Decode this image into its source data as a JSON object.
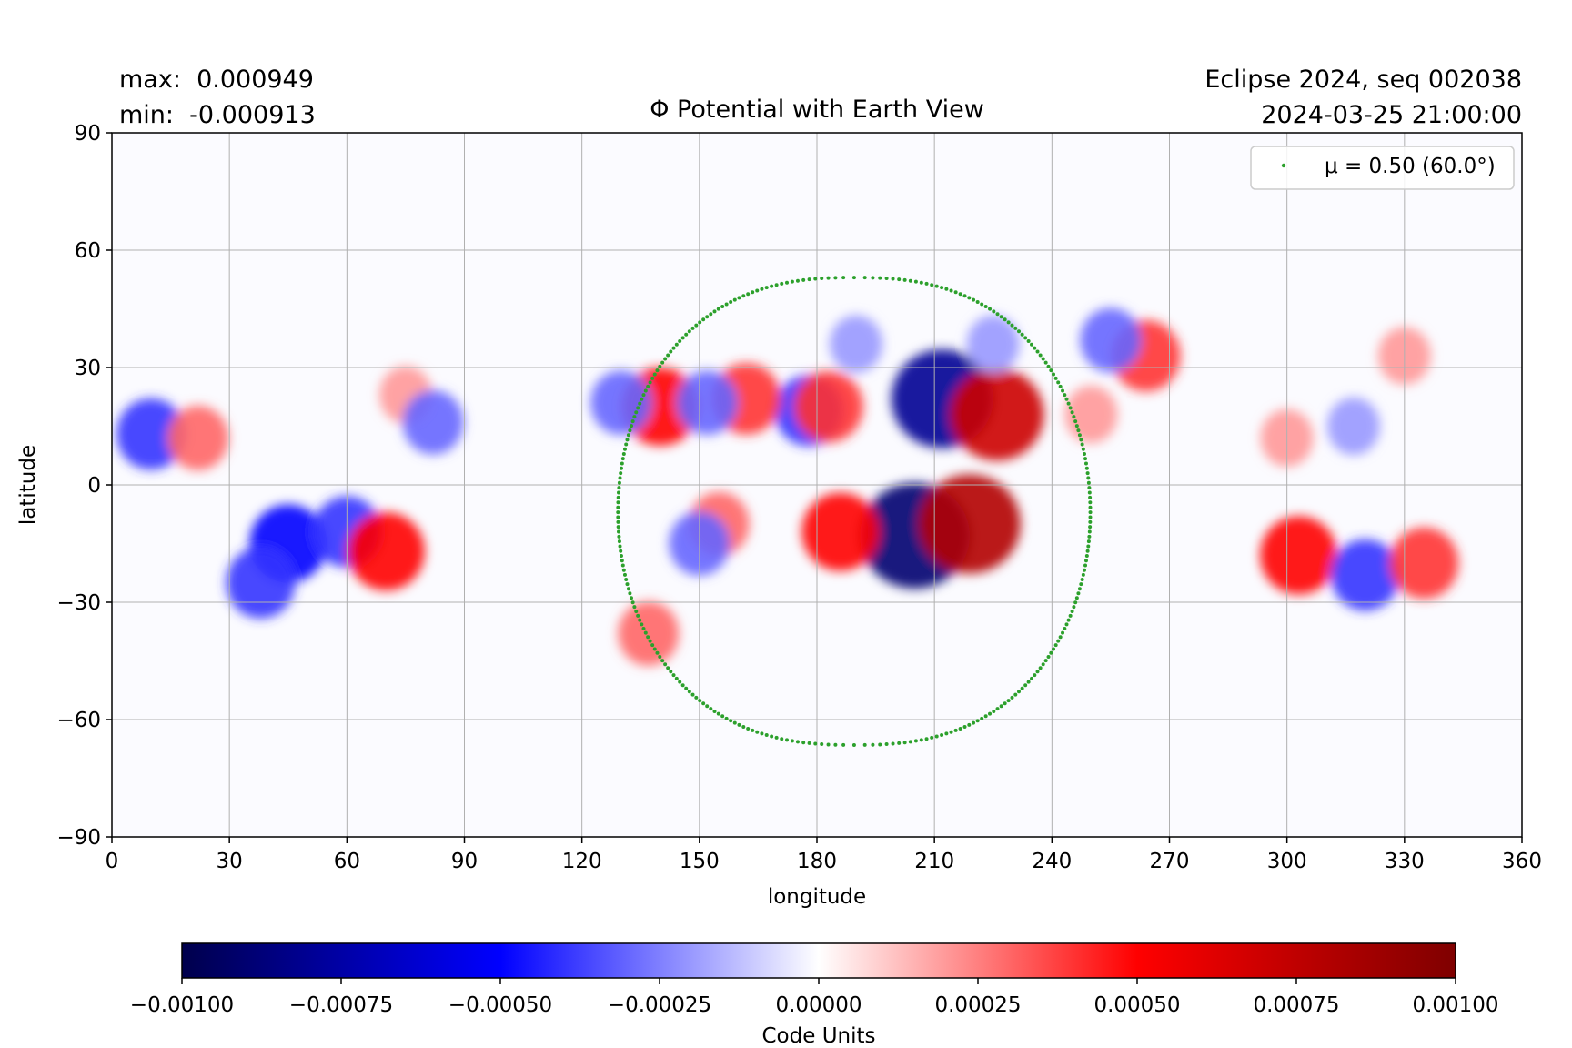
{
  "header": {
    "max_label": "max:  0.000949",
    "min_label": "min:  -0.000913",
    "run_label": "Eclipse 2024, seq 002038",
    "datetime_label": "2024-03-25 21:00:00"
  },
  "chart_data": {
    "type": "heatmap",
    "title": "Φ Potential with Earth View",
    "xlabel": "longitude",
    "ylabel": "latitude",
    "xlim": [
      0,
      360
    ],
    "ylim": [
      -90,
      90
    ],
    "x_ticks": [
      0,
      30,
      60,
      90,
      120,
      150,
      180,
      210,
      240,
      270,
      300,
      330,
      360
    ],
    "y_ticks": [
      90,
      60,
      30,
      0,
      -30,
      -60,
      -90
    ],
    "y_tick_labels": [
      "90",
      "60",
      "30",
      "0",
      "−30",
      "−60",
      "−90"
    ],
    "grid": true,
    "colormap": "seismic",
    "colormap_colors": [
      "#00004c",
      "#0000ff",
      "#ffffff",
      "#ff0000",
      "#7f0000"
    ],
    "value_max": 0.000949,
    "value_min": -0.000913,
    "features": [
      {
        "lon": 212,
        "lat": 22,
        "value": -0.0008
      },
      {
        "lon": 226,
        "lat": 18,
        "value": 0.0007
      },
      {
        "lon": 205,
        "lat": -13,
        "value": -0.0009
      },
      {
        "lon": 219,
        "lat": -10,
        "value": 0.0008
      },
      {
        "lon": 186,
        "lat": -12,
        "value": 0.0005
      },
      {
        "lon": 140,
        "lat": 20,
        "value": 0.0005
      },
      {
        "lon": 178,
        "lat": 19,
        "value": -0.0004
      },
      {
        "lon": 183,
        "lat": 20,
        "value": 0.0004
      },
      {
        "lon": 162,
        "lat": 22,
        "value": 0.0004
      },
      {
        "lon": 152,
        "lat": 21,
        "value": -0.0003
      },
      {
        "lon": 10,
        "lat": 13,
        "value": -0.0004
      },
      {
        "lon": 22,
        "lat": 12,
        "value": 0.0003
      },
      {
        "lon": 45,
        "lat": -15,
        "value": -0.0005
      },
      {
        "lon": 38,
        "lat": -25,
        "value": -0.0004
      },
      {
        "lon": 60,
        "lat": -12,
        "value": -0.0004
      },
      {
        "lon": 70,
        "lat": -17,
        "value": 0.0005
      },
      {
        "lon": 303,
        "lat": -18,
        "value": 0.0005
      },
      {
        "lon": 320,
        "lat": -23,
        "value": -0.0004
      },
      {
        "lon": 335,
        "lat": -20,
        "value": 0.0004
      },
      {
        "lon": 264,
        "lat": 33,
        "value": 0.0004
      },
      {
        "lon": 255,
        "lat": 37,
        "value": -0.0003
      },
      {
        "lon": 130,
        "lat": 21,
        "value": -0.0003
      },
      {
        "lon": 137,
        "lat": -38,
        "value": 0.0003
      },
      {
        "lon": 75,
        "lat": 23,
        "value": 0.0002
      },
      {
        "lon": 82,
        "lat": 16,
        "value": -0.0003
      },
      {
        "lon": 300,
        "lat": 12,
        "value": 0.0002
      },
      {
        "lon": 317,
        "lat": 15,
        "value": -0.0002
      },
      {
        "lon": 330,
        "lat": 33,
        "value": 0.0002
      },
      {
        "lon": 155,
        "lat": -10,
        "value": 0.0003
      },
      {
        "lon": 150,
        "lat": -15,
        "value": -0.0003
      },
      {
        "lon": 250,
        "lat": 18,
        "value": 0.0002
      },
      {
        "lon": 190,
        "lat": 36,
        "value": -0.0002
      },
      {
        "lon": 225,
        "lat": 36,
        "value": -0.0002
      }
    ],
    "earth_view_contour": {
      "legend_label": "μ = 0.50 (60.0°)",
      "color": "#2ca02c",
      "center_lon": 189.5,
      "center_lat": -7,
      "lon_radius": 60.3,
      "lat_north": 53,
      "lat_south": -66.5
    },
    "colorbar": {
      "label": "Code Units",
      "range": [
        -0.001,
        0.001
      ],
      "ticks": [
        -0.001,
        -0.00075,
        -0.0005,
        -0.00025,
        0,
        0.00025,
        0.0005,
        0.00075,
        0.001
      ],
      "tick_labels": [
        "−0.00100",
        "−0.00075",
        "−0.00050",
        "−0.00025",
        "0.00000",
        "0.00025",
        "0.00050",
        "0.00075",
        "0.00100"
      ]
    }
  }
}
